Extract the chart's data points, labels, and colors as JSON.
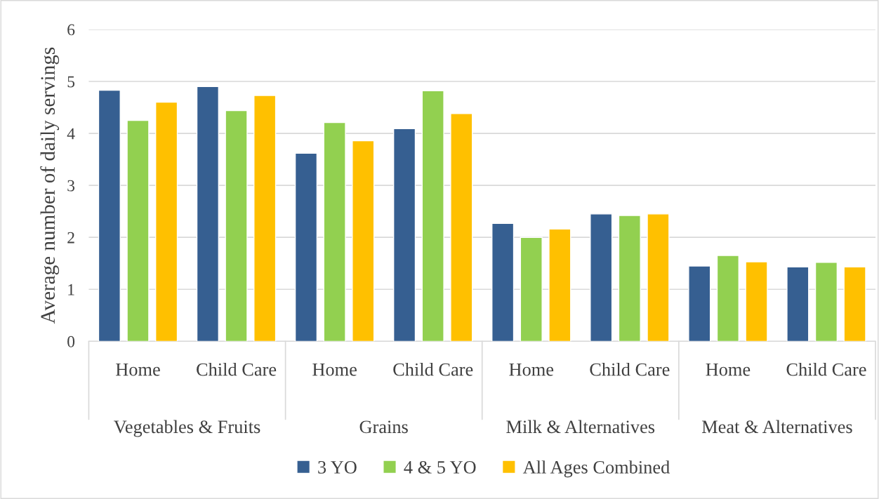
{
  "chart_data": {
    "type": "bar",
    "ylabel": "Average number of daily servings",
    "categories": [
      "Home",
      "Child Care",
      "Home",
      "Child Care",
      "Home",
      "Child Care",
      "Home",
      "Child Care"
    ],
    "annotations": [
      "Vegetables & Fruits",
      "Grains",
      "Milk & Alternatives",
      "Meat & Alternatives"
    ],
    "series": [
      {
        "name": "3 YO",
        "color": "#365f91",
        "values": [
          4.83,
          4.9,
          3.62,
          4.09,
          2.27,
          2.45,
          1.45,
          1.43
        ]
      },
      {
        "name": "4 & 5 YO",
        "color": "#92d050",
        "values": [
          4.25,
          4.44,
          4.21,
          4.82,
          2.0,
          2.42,
          1.65,
          1.52
        ]
      },
      {
        "name": "All Ages Combined",
        "color": "#ffc000",
        "values": [
          4.6,
          4.73,
          3.86,
          4.38,
          2.16,
          2.45,
          1.53,
          1.43
        ]
      }
    ],
    "ylim": [
      0,
      6
    ],
    "yticks": [
      0,
      1,
      2,
      3,
      4,
      5,
      6
    ],
    "grid": "y",
    "legend": "bottom"
  }
}
